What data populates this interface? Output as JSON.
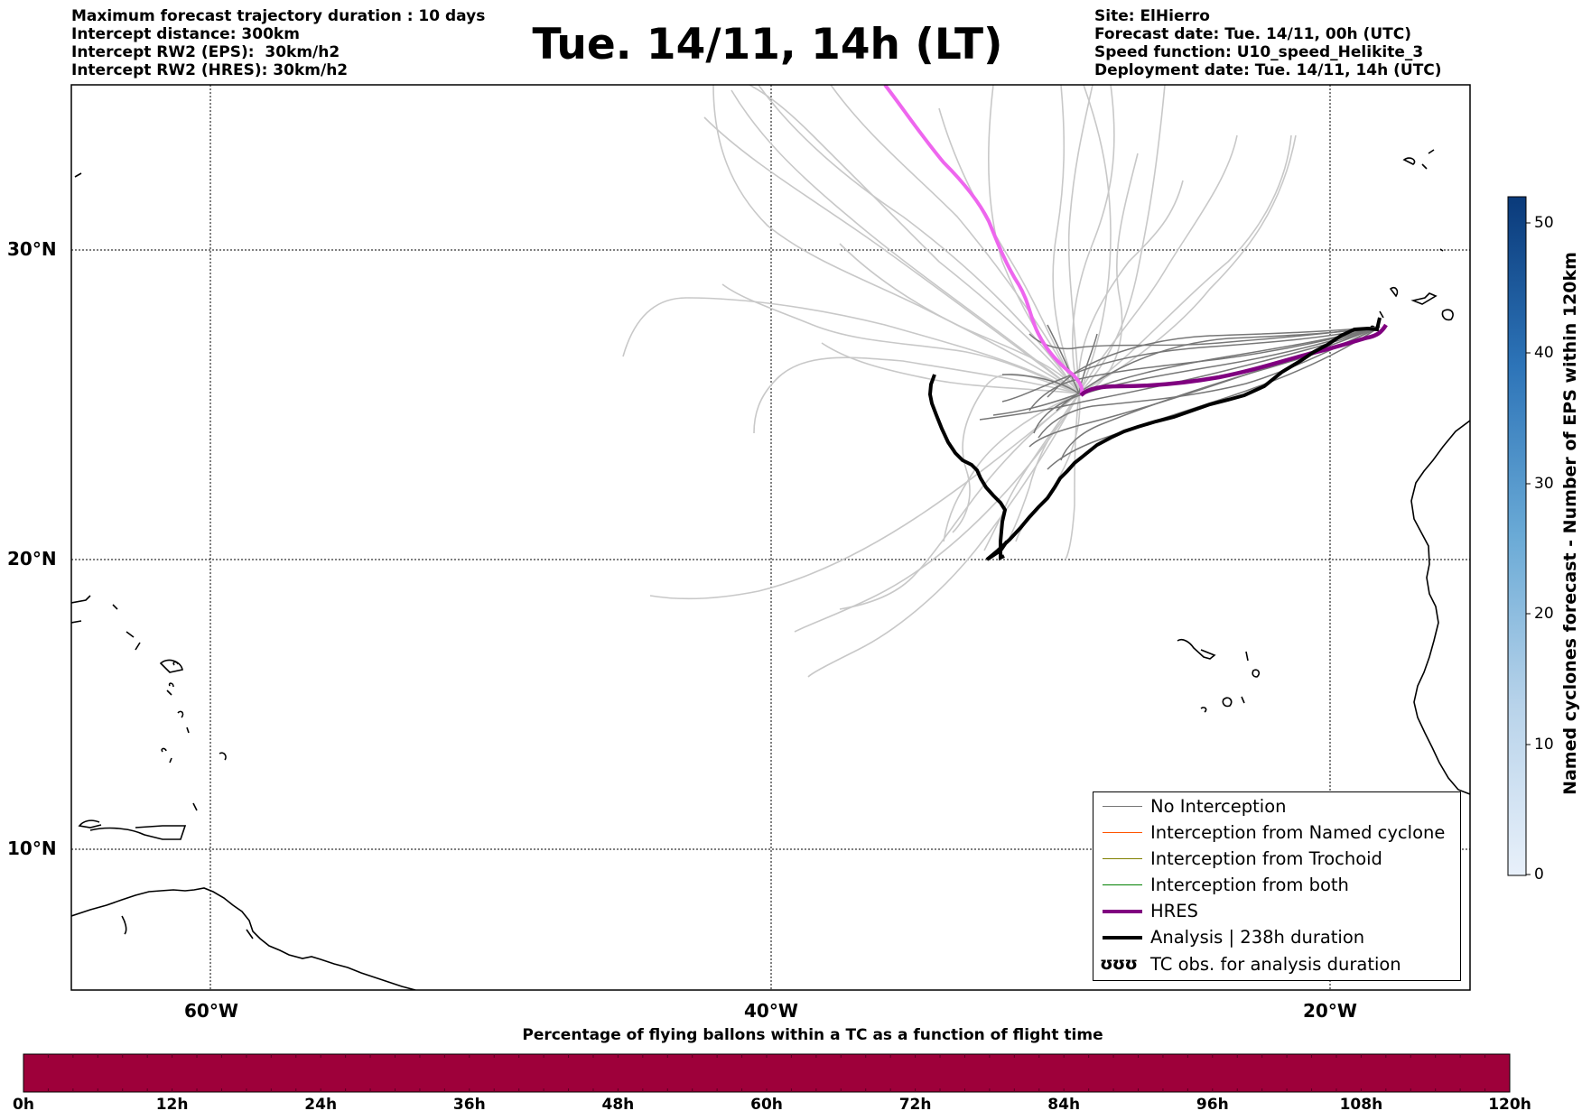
{
  "header": {
    "left_lines": [
      "Maximum forecast trajectory duration : 10 days",
      "Intercept distance: 300km",
      "Intercept RW2 (EPS):  30km/h2",
      "Intercept RW2 (HRES): 30km/h2"
    ],
    "title": "Tue. 14/11, 14h (LT)",
    "right_lines": [
      "Site: ElHierro",
      "Forecast date: Tue. 14/11, 00h (UTC)",
      "Speed function: U10_speed_Helikite_3",
      "Deployment date: Tue. 14/11, 14h (UTC)"
    ]
  },
  "map": {
    "lat_labels": [
      "30°N",
      "20°N",
      "10°N"
    ],
    "lon_labels": [
      "60°W",
      "40°W",
      "20°W"
    ],
    "colors": {
      "hres": "#800080",
      "hres_early": "#ee66ee",
      "analysis": "#000000",
      "no_interception": "#777777",
      "ensemble": "#c8c8c8"
    }
  },
  "legend": {
    "items": [
      {
        "label": "No Interception",
        "color": "#777777",
        "style": "thin"
      },
      {
        "label": "Interception from Named cyclone",
        "color": "#ff5500",
        "style": "thin"
      },
      {
        "label": "Interception from Trochoid",
        "color": "#808000",
        "style": "thin"
      },
      {
        "label": "Interception from both",
        "color": "#008000",
        "style": "thin"
      },
      {
        "label": "HRES",
        "color": "#800080",
        "style": "thick"
      },
      {
        "label": "Analysis | 238h duration",
        "color": "#000000",
        "style": "thick"
      },
      {
        "label": "TC obs. for analysis duration",
        "color": "#000000",
        "style": "marker",
        "icon": "cyclone-symbols-icon",
        "symbol": "ʊʊʊ"
      }
    ]
  },
  "colorbar_vertical": {
    "title": "Named cyclones forecast - Number of EPS within 120km",
    "ticks": [
      "0",
      "10",
      "20",
      "30",
      "40",
      "50"
    ]
  },
  "colorbar_horizontal": {
    "title": "Percentage of flying ballons within a TC as a function of flight time",
    "ticks": [
      "0h",
      "12h",
      "24h",
      "36h",
      "48h",
      "60h",
      "72h",
      "84h",
      "96h",
      "108h",
      "120h"
    ],
    "color": "#9e003a"
  }
}
